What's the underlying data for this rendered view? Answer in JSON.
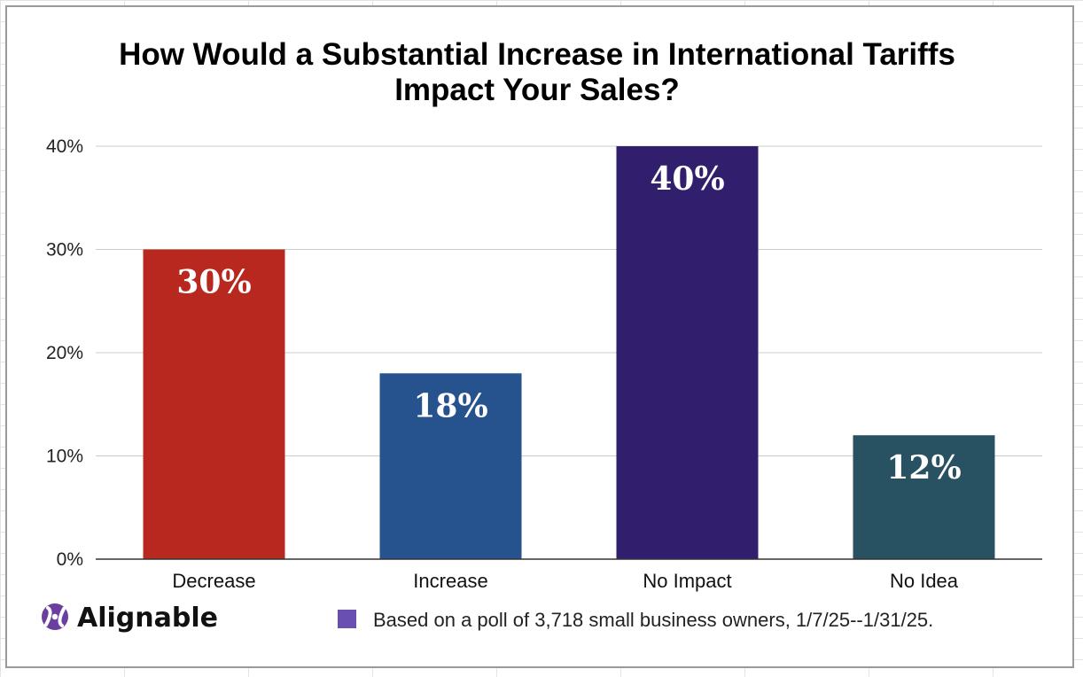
{
  "chart_data": {
    "type": "bar",
    "title_lines": [
      "How Would a Substantial Increase in International Tariffs",
      "Impact Your Sales?"
    ],
    "categories": [
      "Decrease",
      "Increase",
      "No Impact",
      "No Idea"
    ],
    "values": [
      30,
      18,
      40,
      12
    ],
    "data_labels": [
      "30%",
      "18%",
      "40%",
      "12%"
    ],
    "bar_colors": [
      "#b9281e",
      "#26538e",
      "#311e6c",
      "#285161"
    ],
    "ylim": [
      0,
      40
    ],
    "y_ticks": [
      0,
      10,
      20,
      30,
      40
    ],
    "y_tick_labels": [
      "0%",
      "10%",
      "20%",
      "30%",
      "40%"
    ],
    "xlabel": "",
    "ylabel": "",
    "grid": true,
    "legend": {
      "position": "bottom",
      "color": "#6a4fb2",
      "text": "Based on a poll of 3,718 small business owners, 1/7/25--1/31/25."
    }
  },
  "brand": {
    "name": "Alignable",
    "logo_color": "#6a3fa0",
    "icon": "alignable-logo-icon"
  }
}
